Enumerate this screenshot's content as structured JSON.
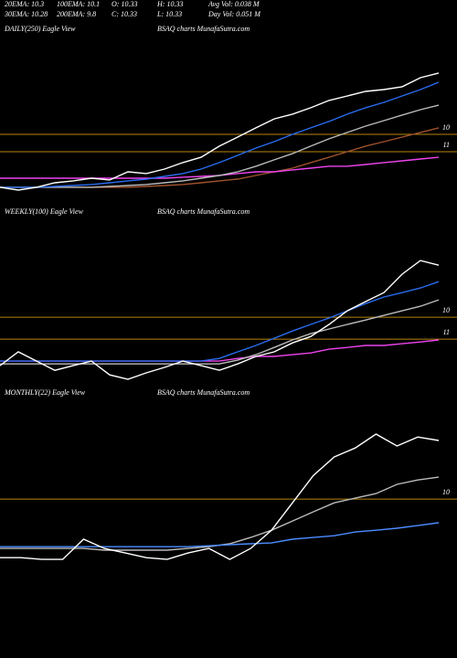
{
  "header": {
    "rows": [
      [
        "20EMA: 10.3",
        "100EMA: 10.1",
        "O: 10.33",
        "H: 10.33",
        "Avg Vol: 0.038 M"
      ],
      [
        "30EMA: 10.28",
        "200EMA: 9.8",
        "C: 10.33",
        "L: 10.33",
        "Day Vol: 0.051 M"
      ]
    ]
  },
  "chart_data": [
    {
      "type": "line",
      "title": "DAILY(250) Eagle View",
      "subtitle": "BSAQ charts MunafaSutra.com",
      "ylim": [
        13.58,
        4.37
      ],
      "yticks": [
        10,
        11
      ],
      "grid": true,
      "series": [
        {
          "color": "#a0522d",
          "values": [
            13.05,
            13.05,
            13.05,
            13.05,
            13.05,
            13.05,
            13.05,
            13.05,
            13.0,
            12.95,
            12.89,
            12.79,
            12.68,
            12.58,
            12.37,
            12.16,
            11.95,
            11.63,
            11.32,
            11.0,
            10.68,
            10.42,
            10.16,
            9.89,
            9.63
          ]
        },
        {
          "color": "#ee44ee",
          "values": [
            12.53,
            12.53,
            12.53,
            12.53,
            12.53,
            12.53,
            12.53,
            12.53,
            12.53,
            12.53,
            12.47,
            12.42,
            12.37,
            12.26,
            12.16,
            12.16,
            12.05,
            11.95,
            11.84,
            11.84,
            11.74,
            11.63,
            11.53,
            11.42,
            11.32
          ]
        },
        {
          "color": "#bbbbbb",
          "values": [
            13.05,
            13.05,
            13.05,
            13.05,
            13.05,
            13.05,
            13.0,
            12.95,
            12.89,
            12.79,
            12.68,
            12.53,
            12.37,
            12.16,
            11.84,
            11.47,
            11.11,
            10.68,
            10.26,
            9.89,
            9.53,
            9.21,
            8.89,
            8.58,
            8.32
          ]
        },
        {
          "color": "#2a6cf0",
          "values": [
            13.05,
            13.05,
            13.05,
            13.0,
            12.95,
            12.89,
            12.79,
            12.68,
            12.58,
            12.42,
            12.26,
            12.0,
            11.63,
            11.21,
            10.79,
            10.42,
            10.0,
            9.63,
            9.26,
            8.84,
            8.47,
            8.16,
            7.79,
            7.42,
            7.0
          ]
        },
        {
          "color": "#ffffff",
          "values": [
            13.05,
            13.21,
            13.05,
            12.79,
            12.68,
            12.53,
            12.63,
            12.16,
            12.26,
            12.0,
            11.63,
            11.32,
            10.68,
            10.16,
            9.63,
            9.11,
            8.84,
            8.47,
            8.05,
            7.79,
            7.53,
            7.42,
            7.26,
            6.74,
            6.47
          ]
        }
      ]
    },
    {
      "type": "line",
      "title": "WEEKLY(100) Eagle View",
      "subtitle": "BSAQ charts MunafaSutra.com",
      "ylim": [
        12.83,
        5.54
      ],
      "yticks": [
        10,
        11
      ],
      "grid": true,
      "series": [
        {
          "color": "#ee44ee",
          "values": [
            12.0,
            12.0,
            12.0,
            12.0,
            12.0,
            12.0,
            12.0,
            12.0,
            12.0,
            12.0,
            12.0,
            12.0,
            12.0,
            11.88,
            11.79,
            11.79,
            11.71,
            11.63,
            11.46,
            11.38,
            11.29,
            11.29,
            11.21,
            11.13,
            11.04
          ]
        },
        {
          "color": "#bbbbbb",
          "values": [
            12.13,
            12.13,
            12.13,
            12.13,
            12.13,
            12.13,
            12.13,
            12.13,
            12.13,
            12.13,
            12.13,
            12.13,
            12.13,
            11.96,
            11.71,
            11.38,
            11.04,
            10.75,
            10.54,
            10.33,
            10.13,
            9.92,
            9.71,
            9.5,
            9.21
          ]
        },
        {
          "color": "#2a6cf0",
          "values": [
            12.0,
            12.0,
            12.0,
            12.0,
            12.0,
            12.0,
            12.0,
            12.0,
            12.0,
            12.0,
            12.0,
            12.0,
            11.88,
            11.58,
            11.29,
            10.96,
            10.63,
            10.33,
            10.04,
            9.71,
            9.38,
            9.08,
            8.88,
            8.67,
            8.38
          ]
        },
        {
          "color": "#ffffff",
          "values": [
            12.21,
            11.58,
            12.0,
            12.42,
            12.21,
            12.0,
            12.63,
            12.83,
            12.54,
            12.29,
            12.0,
            12.21,
            12.42,
            12.13,
            11.79,
            11.58,
            11.17,
            10.88,
            10.33,
            9.71,
            9.29,
            8.88,
            8.04,
            7.42,
            7.63
          ]
        }
      ]
    },
    {
      "type": "line",
      "title": "MONTHLY(22) Eagle View",
      "subtitle": "BSAQ charts MunafaSutra.com",
      "ylim": [
        13.08,
        5.58
      ],
      "yticks": [
        10
      ],
      "grid": true,
      "series": [
        {
          "color": "#bbbbbb",
          "values": [
            12.25,
            12.25,
            12.25,
            12.25,
            12.25,
            12.33,
            12.33,
            12.33,
            12.33,
            12.25,
            12.17,
            12.04,
            11.75,
            11.42,
            11.0,
            10.58,
            10.17,
            9.96,
            9.75,
            9.33,
            9.13,
            9.0
          ]
        },
        {
          "color": "#4d8cff",
          "values": [
            12.17,
            12.17,
            12.17,
            12.17,
            12.17,
            12.17,
            12.17,
            12.17,
            12.17,
            12.17,
            12.13,
            12.08,
            12.04,
            12.0,
            11.83,
            11.75,
            11.67,
            11.5,
            11.42,
            11.33,
            11.21,
            11.08
          ]
        },
        {
          "color": "#ffffff",
          "values": [
            12.67,
            12.67,
            12.75,
            12.75,
            11.83,
            12.25,
            12.46,
            12.67,
            12.75,
            12.46,
            12.25,
            12.75,
            12.25,
            11.42,
            10.17,
            8.92,
            8.08,
            7.67,
            7.04,
            7.58,
            7.17,
            7.33
          ]
        }
      ]
    }
  ]
}
